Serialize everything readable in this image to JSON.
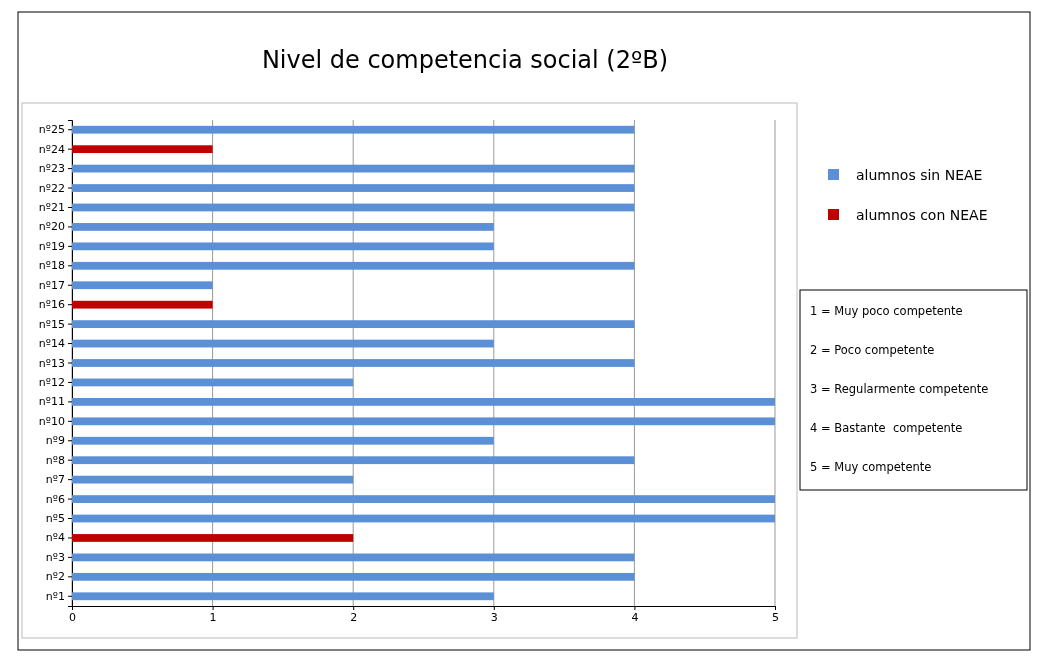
{
  "chart_data": {
    "type": "bar",
    "orientation": "horizontal",
    "title": "Nivel de competencia social (2ºB)",
    "categories": [
      "nº25",
      "nº24",
      "nº23",
      "nº22",
      "nº21",
      "nº20",
      "nº19",
      "nº18",
      "nº17",
      "nº16",
      "nº15",
      "nº14",
      "nº13",
      "nº12",
      "nº11",
      "nº10",
      "nº9",
      "nº8",
      "nº7",
      "nº6",
      "nº5",
      "nº4",
      "nº3",
      "nº2",
      "nº1"
    ],
    "series": [
      {
        "name": "alumnos sin NEAE",
        "color": "#5b8fd6",
        "values": [
          4,
          null,
          4,
          4,
          4,
          3,
          3,
          4,
          1,
          null,
          4,
          3,
          4,
          2,
          5,
          5,
          3,
          4,
          2,
          5,
          5,
          null,
          4,
          4,
          3
        ]
      },
      {
        "name": "alumnos con NEAE",
        "color": "#c00000",
        "values": [
          null,
          1,
          null,
          null,
          null,
          null,
          null,
          null,
          null,
          1,
          null,
          null,
          null,
          null,
          null,
          null,
          null,
          null,
          null,
          null,
          null,
          2,
          null,
          null,
          null
        ]
      }
    ],
    "xlim": [
      0,
      5
    ],
    "xticks": [
      0,
      1,
      2,
      3,
      4,
      5
    ],
    "grid": "x",
    "legend": "right",
    "annotations": [
      "1 = Muy poco competente",
      "2 = Poco competente",
      "3 = Regularmente competente",
      "4 = Bastante  competente",
      "5 = Muy competente"
    ]
  }
}
